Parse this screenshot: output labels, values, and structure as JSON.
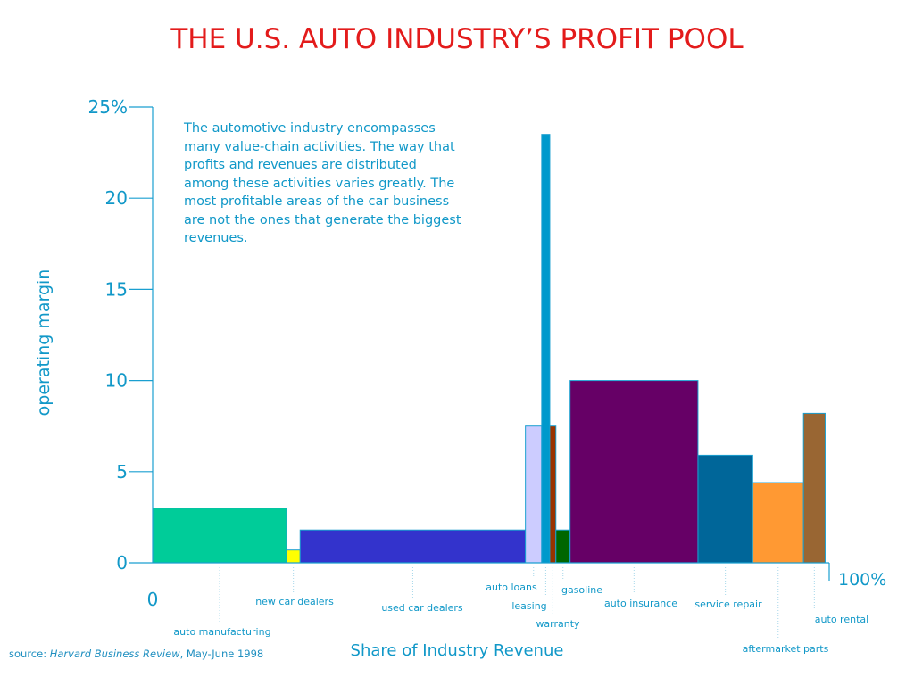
{
  "title": "THE U.S. AUTO INDUSTRY’S PROFIT POOL",
  "annotation": "The automotive industry encompasses\nmany value-chain activities.  The way that\nprofits and revenues are distributed\namong these activities varies greatly.  The\nmost profitable areas of the car business\nare not the ones that generate the biggest\nrevenues.",
  "source": {
    "prefix": "source: ",
    "publication": "Harvard Business Review",
    "suffix": ", May-June 1998"
  },
  "colors": {
    "axis": "#1a9fd0",
    "text": "#1198c8",
    "title": "#e31b1b"
  },
  "chart_data": {
    "type": "bar",
    "subtype": "variable-width (marimekko-style) bar chart",
    "title": "THE U.S. AUTO INDUSTRY’S PROFIT POOL",
    "xlabel": "Share of Industry Revenue",
    "ylabel": "operating margin",
    "xlim": [
      0,
      100
    ],
    "ylim": [
      0,
      25
    ],
    "x_tick_labels": [
      "0",
      "100%"
    ],
    "y_ticks": [
      {
        "value": 0,
        "label": "0"
      },
      {
        "value": 5,
        "label": "5"
      },
      {
        "value": 10,
        "label": "10"
      },
      {
        "value": 15,
        "label": "15"
      },
      {
        "value": 20,
        "label": "20"
      },
      {
        "value": 25,
        "label": "25%"
      }
    ],
    "grid": false,
    "segments": [
      {
        "name": "auto manufacturing",
        "revenue_share": 19.8,
        "margin": 3.0,
        "color": "#00cc99"
      },
      {
        "name": "new car dealers",
        "revenue_share": 2.0,
        "margin": 0.7,
        "color": "#ffff00"
      },
      {
        "name": "used car dealers",
        "revenue_share": 33.3,
        "margin": 1.8,
        "color": "#3333cc"
      },
      {
        "name": "auto loans",
        "revenue_share": 2.4,
        "margin": 7.5,
        "color": "#ccccff"
      },
      {
        "name": "leasing",
        "revenue_share": 1.2,
        "margin": 23.5,
        "color": "#0099cc"
      },
      {
        "name": "warranty",
        "revenue_share": 0.9,
        "margin": 7.5,
        "color": "#993300"
      },
      {
        "name": "gasoline",
        "revenue_share": 2.1,
        "margin": 1.8,
        "color": "#006600"
      },
      {
        "name": "auto insurance",
        "revenue_share": 18.9,
        "margin": 10.0,
        "color": "#660066"
      },
      {
        "name": "service repair",
        "revenue_share": 8.1,
        "margin": 5.9,
        "color": "#006699"
      },
      {
        "name": "aftermarket parts",
        "revenue_share": 7.5,
        "margin": 4.4,
        "color": "#ff9933"
      },
      {
        "name": "auto rental",
        "revenue_share": 3.2,
        "margin": 8.2,
        "color": "#996633"
      }
    ]
  }
}
